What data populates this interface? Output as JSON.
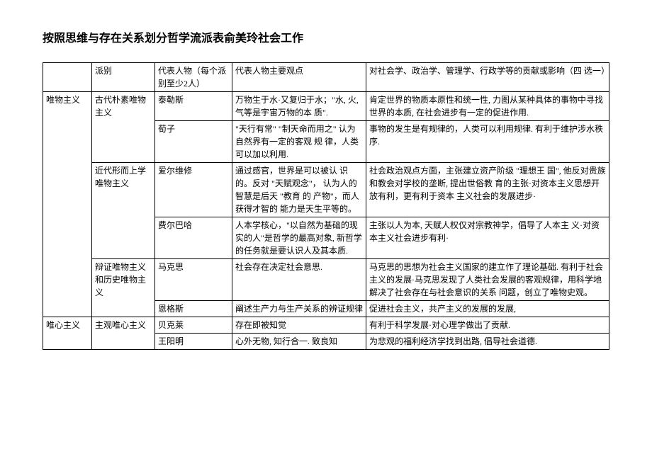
{
  "title": "按照思维与存在关系划分哲学流派表俞美玲社会工作",
  "headers": {
    "cat1": "",
    "cat2": "派别",
    "person": "代表人物（每个派别至少2人）",
    "view": "代表人物主要观点",
    "impact": "对社会学、政治学、管理学、行政学等的贡献或影响（四 选一）"
  },
  "rows": [
    {
      "cat1": "唯物主义",
      "cat2": "古代朴素唯物主义",
      "person": "泰勒斯",
      "view": "万物生于水·又复归于水；\"水, 火, 气等是宇宙万物的本 质\".",
      "impact": "肯定世界的物质本原性和统一性, 力图从某种具体的事物中寻找世界的本质, 在社会进步有一定的促进作用."
    },
    {
      "person": "荀子",
      "view": "\"天行有常\" \"制天命而用之\" 认为自然界有一定的客观 规 律，人类可以加以利用.",
      "impact": "事物的发生是有规律的，人类可以利用规律. 有利于维护涉水秩序."
    },
    {
      "cat2": "近代形而上学唯物主义",
      "person": "爱尔维修",
      "view": "通过感官，世界是可以被认 识的。反对 \"天赋观念\"， 认为人的智慧是后天 \"教育 的 产物\"，而人获得才智的 能力是天生平等的。",
      "impact": "社会政治观点方面，主张建立资产阶级 \"理想王 国\", 他反对贵族和教会对学校的垄断,  提出世俗教 育的主张·对资本主义思想开放有利，更有利于资本 主义社会的发展进步·"
    },
    {
      "person": "费尔巴哈",
      "view": "人本学核心，\"以自然为基础的现实的人\"是哲学的最高对象, 新哲学的任务就是要认识人及其本质.",
      "impact": "主张以人为本, 天赋人权仅对宗教神学，倡导了人本主 义·对资本主义社会进步有利·"
    },
    {
      "cat2": "辩证唯物主义和历史唯物主义",
      "person": "马克思",
      "view": "社会存在决定社会意思.",
      "impact": "马克思的思想为社会主义国家的建立作了理论基础. 有利于社会主义的发展·马克思发现了人类社会发展的客观规律，用科学地解决了社会存在与社会意识的关系 问题，创立了唯物史观。"
    },
    {
      "person": "恩格斯",
      "view": "阐述生产力与生产关系的辨证规律",
      "impact": "促进社会主义，共产主义的发展的发展,"
    },
    {
      "cat1": "唯心主义",
      "cat2": "主观唯心主义",
      "person": "贝克莱",
      "view": "存在即被知觉",
      "impact": "有利于科学发展·对心理学做出了贡献."
    },
    {
      "person": "王阳明",
      "view": "心外无物,  知行合一. 致良知",
      "impact": "为悲观的福利经济学找到出路,  倡导社会道德."
    }
  ]
}
